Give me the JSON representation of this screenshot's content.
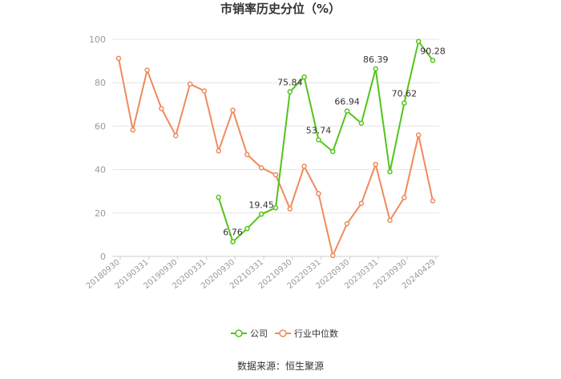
{
  "chart_data": {
    "type": "line",
    "title": "市销率历史分位（%）",
    "ylim": [
      0,
      100
    ],
    "y_ticks": [
      0,
      20,
      40,
      60,
      80,
      100
    ],
    "x_tick_labels": [
      "20180930",
      "20190331",
      "20190930",
      "20200331",
      "20200930",
      "20210331",
      "20210930",
      "20220331",
      "20220930",
      "20230331",
      "20230930",
      "20240429"
    ],
    "grid": "horizontal",
    "legend_position": "bottom",
    "source": "数据来源：恒生聚源",
    "series": [
      {
        "name": "公司",
        "color": "#52c41a",
        "values": [
          null,
          null,
          null,
          null,
          null,
          null,
          null,
          27.2,
          6.76,
          12.8,
          19.45,
          22.4,
          75.84,
          82.6,
          53.74,
          48.3,
          66.94,
          61.3,
          86.39,
          39.0,
          70.62,
          99.0,
          90.28
        ],
        "data_labels": [
          {
            "index": 8,
            "text": "6.76"
          },
          {
            "index": 10,
            "text": "19.45"
          },
          {
            "index": 12,
            "text": "75.84"
          },
          {
            "index": 14,
            "text": "53.74"
          },
          {
            "index": 16,
            "text": "66.94"
          },
          {
            "index": 18,
            "text": "86.39"
          },
          {
            "index": 20,
            "text": "70.62"
          },
          {
            "index": 22,
            "text": "90.28"
          }
        ]
      },
      {
        "name": "行业中位数",
        "color": "#f08a5d",
        "values": [
          91.2,
          58.2,
          85.8,
          68.1,
          55.6,
          79.4,
          76.2,
          48.6,
          67.3,
          46.9,
          40.8,
          37.6,
          21.9,
          41.5,
          28.9,
          0.4,
          15.1,
          24.4,
          42.4,
          16.6,
          27.1,
          55.9,
          25.6
        ]
      }
    ]
  }
}
